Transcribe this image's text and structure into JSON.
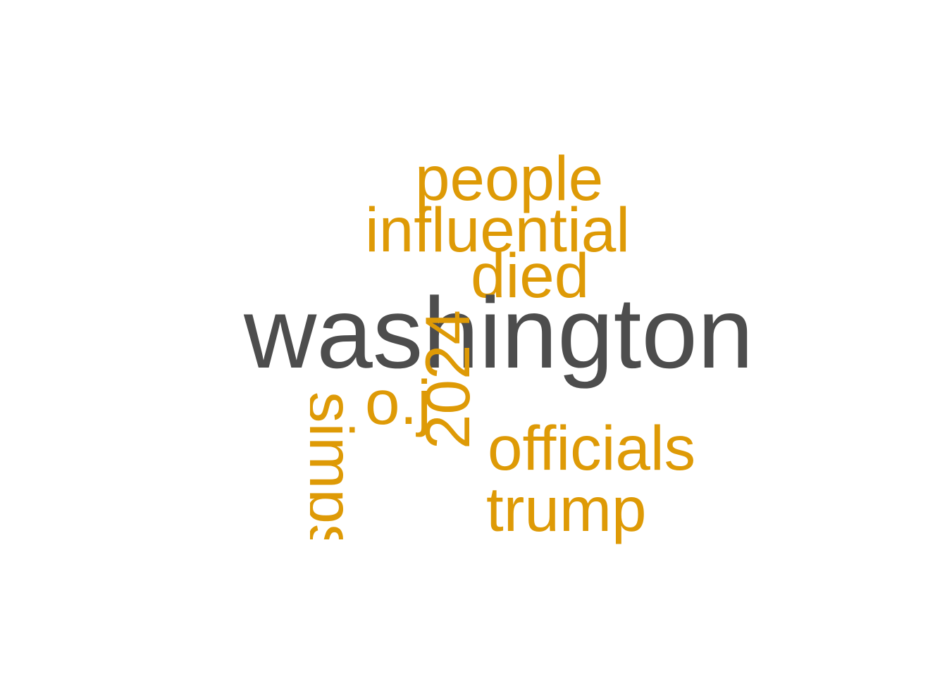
{
  "colors": {
    "background": "#ffffff",
    "primary_word": "#4d4d4d",
    "secondary_word": "#de9a06"
  },
  "words": {
    "people": "people",
    "influential": "influential",
    "died": "died",
    "washington": "washington",
    "oj": "o.j",
    "year": "2024",
    "simpson": "simpson",
    "officials": "officials",
    "trump": "trump"
  }
}
